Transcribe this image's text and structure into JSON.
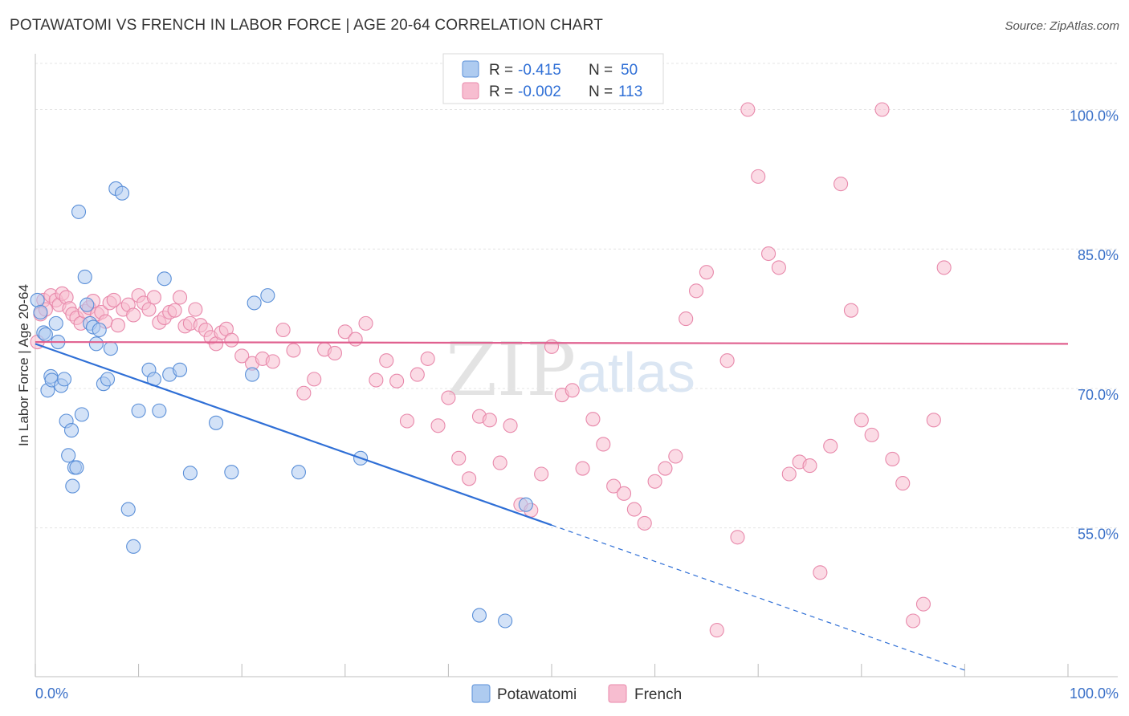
{
  "header": {
    "title": "POTAWATOMI VS FRENCH IN LABOR FORCE | AGE 20-64 CORRELATION CHART",
    "source": "Source: ZipAtlas.com"
  },
  "watermark": {
    "zip": "ZIP",
    "atlas": "atlas"
  },
  "legend": {
    "r_label": "R =",
    "n_label": "N =",
    "entries": [
      {
        "name": "Potawatomi",
        "r": "-0.415",
        "n": "50"
      },
      {
        "name": "French",
        "r": "-0.002",
        "n": "113"
      }
    ]
  },
  "colors": {
    "potawatomi_fill": "#aecbf0",
    "potawatomi_stroke": "#5a8fd8",
    "potawatomi_line": "#2f6fd6",
    "french_fill": "#f7bdd0",
    "french_stroke": "#e889ab",
    "french_line": "#e0608f",
    "grid": "#e4e4e4",
    "tick_text": "#3a70c8"
  },
  "chart_data": {
    "type": "scatter",
    "title": "POTAWATOMI VS FRENCH IN LABOR FORCE | AGE 20-64 CORRELATION CHART",
    "xlabel": "",
    "ylabel": "In Labor Force | Age 20-64",
    "xlim": [
      0,
      100
    ],
    "ylim": [
      39,
      106
    ],
    "x_tick_labels": [
      "0.0%",
      "100.0%"
    ],
    "y_ticks": [
      55,
      70,
      85,
      100
    ],
    "y_tick_labels": [
      "55.0%",
      "70.0%",
      "85.0%",
      "100.0%"
    ],
    "grid": true,
    "legend_position": "top-center",
    "series": [
      {
        "name": "Potawatomi",
        "x": [
          0.2,
          0.5,
          0.8,
          1.2,
          1.5,
          1.6,
          2.0,
          2.2,
          2.5,
          2.8,
          3.0,
          3.2,
          3.5,
          3.8,
          4.0,
          4.2,
          4.5,
          4.8,
          5.0,
          5.3,
          5.6,
          5.9,
          6.2,
          6.6,
          7.0,
          7.3,
          7.8,
          8.4,
          9.0,
          9.5,
          10.0,
          11.0,
          11.5,
          12.0,
          12.5,
          13.0,
          14.0,
          15.0,
          17.5,
          19.0,
          21.0,
          21.2,
          22.5,
          25.5,
          31.5,
          43.0,
          45.5,
          47.5,
          1.0,
          3.6
        ],
        "y": [
          79.5,
          78.2,
          76.0,
          69.8,
          71.3,
          70.9,
          77.0,
          75.0,
          70.3,
          71.0,
          66.5,
          62.8,
          65.5,
          61.5,
          61.5,
          89.0,
          67.2,
          82.0,
          79.0,
          77.0,
          76.6,
          74.8,
          76.3,
          70.5,
          71.0,
          74.3,
          91.5,
          91.0,
          57.0,
          53.0,
          67.6,
          72.0,
          71.0,
          67.6,
          81.8,
          71.5,
          72.0,
          60.9,
          66.3,
          61.0,
          71.5,
          79.2,
          80.0,
          61.0,
          62.5,
          45.6,
          45.0,
          57.5,
          75.8,
          59.5
        ],
        "r": -0.415,
        "n": 50
      },
      {
        "name": "French",
        "x": [
          0.2,
          0.5,
          0.8,
          1.0,
          1.5,
          2.0,
          2.3,
          2.6,
          3.0,
          3.3,
          3.6,
          4.0,
          4.4,
          4.8,
          5.2,
          5.6,
          6.0,
          6.4,
          6.8,
          7.2,
          7.6,
          8.0,
          8.5,
          9.0,
          9.5,
          10.0,
          10.5,
          11.0,
          11.5,
          12.0,
          12.5,
          13.0,
          13.5,
          14.0,
          14.5,
          15.0,
          15.5,
          16.0,
          16.5,
          17.0,
          17.5,
          18.0,
          18.5,
          19.0,
          20.0,
          21.0,
          22.0,
          23.0,
          24.0,
          25.0,
          26.0,
          27.0,
          28.0,
          29.0,
          30.0,
          31.0,
          32.0,
          33.0,
          34.0,
          35.0,
          36.0,
          37.0,
          38.0,
          39.0,
          40.0,
          41.0,
          42.0,
          43.0,
          44.0,
          45.0,
          46.0,
          47.0,
          48.0,
          49.0,
          50.0,
          51.0,
          52.0,
          53.0,
          54.0,
          55.0,
          56.0,
          57.0,
          58.0,
          59.0,
          60.0,
          61.0,
          62.0,
          63.0,
          64.0,
          65.0,
          66.0,
          67.0,
          68.0,
          69.0,
          70.0,
          71.0,
          72.0,
          73.0,
          74.0,
          75.0,
          76.0,
          77.0,
          78.0,
          79.0,
          80.0,
          81.0,
          82.0,
          83.0,
          84.0,
          85.0,
          86.0,
          87.0,
          88.0
        ],
        "y": [
          75.0,
          78.0,
          79.5,
          78.5,
          80.0,
          79.5,
          79.0,
          80.2,
          79.8,
          78.6,
          78.0,
          77.6,
          77.0,
          78.3,
          78.7,
          79.4,
          78.0,
          78.2,
          77.2,
          79.2,
          79.5,
          76.8,
          78.5,
          79.0,
          77.9,
          80.0,
          79.2,
          78.5,
          79.8,
          77.1,
          77.6,
          78.2,
          78.4,
          79.8,
          76.7,
          77.0,
          78.5,
          76.8,
          76.3,
          75.5,
          74.8,
          76.0,
          76.4,
          75.2,
          73.5,
          72.7,
          73.2,
          72.9,
          76.3,
          74.1,
          69.5,
          71.0,
          74.2,
          73.8,
          76.1,
          75.3,
          77.0,
          70.9,
          73.0,
          70.8,
          66.5,
          71.5,
          73.2,
          66.0,
          69.0,
          62.5,
          60.3,
          67.0,
          66.6,
          62.0,
          66.0,
          57.5,
          56.9,
          60.8,
          74.5,
          69.3,
          69.8,
          61.4,
          66.7,
          64.0,
          59.5,
          58.7,
          57.0,
          55.5,
          60.0,
          61.4,
          62.7,
          77.5,
          80.5,
          82.5,
          44.0,
          73.0,
          54.0,
          100.0,
          92.8,
          84.5,
          83.0,
          60.8,
          62.1,
          61.7,
          50.2,
          63.8,
          92.0,
          78.4,
          66.6,
          65.0,
          100.0,
          62.4,
          59.8,
          45.0,
          46.8,
          66.6,
          83.0
        ],
        "r": -0.002,
        "n": 113
      }
    ],
    "trend_lines": [
      {
        "series": "Potawatomi",
        "x": [
          0,
          50
        ],
        "y": [
          74.8,
          55.3
        ],
        "dashed_extension_to": [
          90,
          39.7
        ]
      },
      {
        "series": "French",
        "x": [
          0,
          100
        ],
        "y": [
          75.0,
          74.8
        ]
      }
    ]
  }
}
